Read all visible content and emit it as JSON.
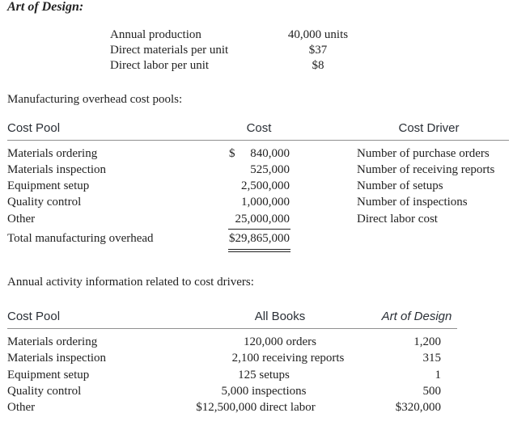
{
  "title": "Art of Design:",
  "production": {
    "rows": [
      {
        "label": "Annual production",
        "value": "40,000 units"
      },
      {
        "label": "Direct materials per unit",
        "value": "$37"
      },
      {
        "label": "Direct labor per unit",
        "value": "$8"
      }
    ]
  },
  "overhead": {
    "heading": "Manufacturing overhead cost pools:",
    "columns": {
      "pool": "Cost Pool",
      "cost": "Cost",
      "driver": "Cost Driver"
    },
    "dollar_sign": "$",
    "rows": [
      {
        "pool": "Materials ordering",
        "cost": "840,000",
        "driver": "Number of purchase orders"
      },
      {
        "pool": "Materials inspection",
        "cost": "525,000",
        "driver": "Number of receiving reports"
      },
      {
        "pool": "Equipment setup",
        "cost": "2,500,000",
        "driver": "Number of setups"
      },
      {
        "pool": "Quality control",
        "cost": "1,000,000",
        "driver": "Number of inspections"
      },
      {
        "pool": "Other",
        "cost": "25,000,000",
        "driver": "Direct labor cost"
      }
    ],
    "total": {
      "label": "Total manufacturing overhead",
      "value": "$29,865,000"
    }
  },
  "activity": {
    "heading": "Annual activity information related to cost drivers:",
    "columns": {
      "pool": "Cost Pool",
      "all": "All Books",
      "design": "Art of Design"
    },
    "rows": [
      {
        "pool": "Materials ordering",
        "all": "120,000 orders",
        "design": "1,200"
      },
      {
        "pool": "Materials inspection",
        "all": "2,100 receiving reports",
        "design": "315"
      },
      {
        "pool": "Equipment setup",
        "all": "125 setups",
        "design": "1"
      },
      {
        "pool": "Quality control",
        "all": "5,000 inspections",
        "design": "500"
      },
      {
        "pool": "Other",
        "all": "$12,500,000 direct labor",
        "design": "$320,000"
      }
    ]
  }
}
